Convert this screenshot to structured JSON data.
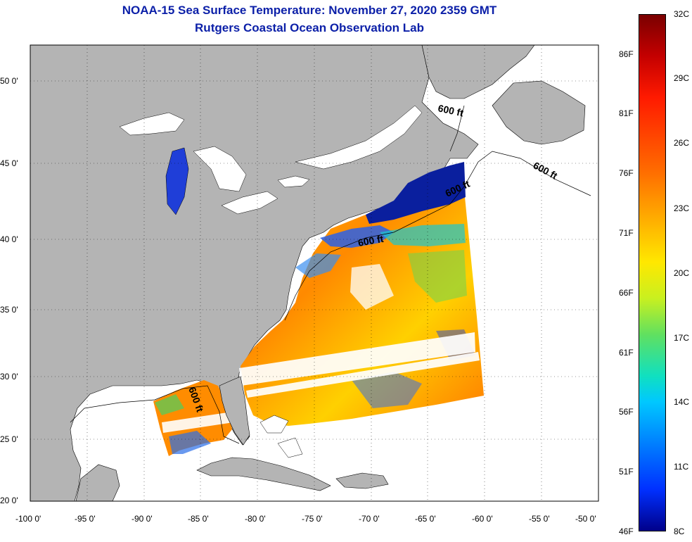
{
  "title": {
    "line1": "NOAA-15 Sea Surface Temperature:  November 27, 2020 2359 GMT",
    "line2": "Rutgers Coastal Ocean Observation Lab",
    "color": "#0b1fa8"
  },
  "map": {
    "lon_ticks": [
      "-100 0'",
      "-95 0'",
      "-90 0'",
      "-85 0'",
      "-80 0'",
      "-75 0'",
      "-70 0'",
      "-65 0'",
      "-60 0'",
      "-55 0'",
      "-50 0'"
    ],
    "lat_ticks": [
      "50 0'",
      "45 0'",
      "40 0'",
      "35 0'",
      "30 0'",
      "25 0'",
      "20 0'"
    ],
    "contour_labels": [
      "600 ft",
      "600 ft",
      "600 ft",
      "600 ft",
      "600 ft"
    ],
    "land_color": "#b4b4b4",
    "ocean_color": "#ffffff"
  },
  "colorbar": {
    "celsius": [
      "32C",
      "29C",
      "26C",
      "23C",
      "20C",
      "17C",
      "14C",
      "11C",
      "8C"
    ],
    "fahrenheit": [
      "86F",
      "81F",
      "76F",
      "71F",
      "66F",
      "61F",
      "56F",
      "51F",
      "46F"
    ]
  }
}
